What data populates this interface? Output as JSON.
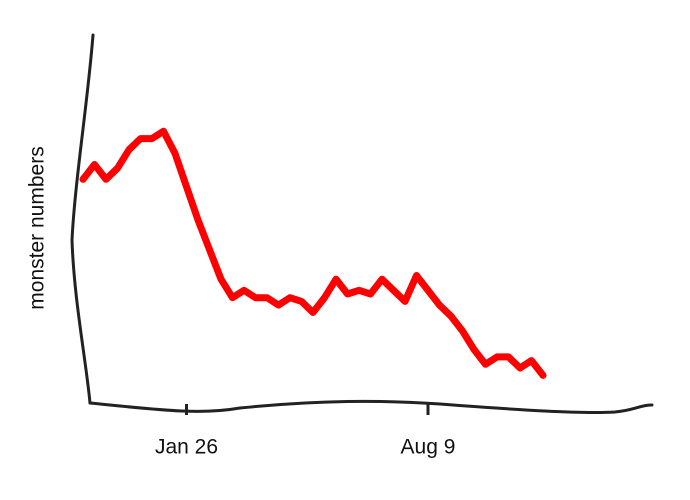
{
  "chart_data": {
    "type": "line",
    "ylabel": "monster numbers",
    "categories": [
      null,
      null,
      null,
      null,
      null,
      null,
      null,
      null,
      null,
      "Jan 26",
      null,
      null,
      null,
      null,
      null,
      null,
      null,
      null,
      null,
      null,
      null,
      null,
      null,
      null,
      null,
      null,
      null,
      null,
      null,
      null,
      "Aug 9",
      null,
      null,
      null,
      null,
      null,
      null,
      null,
      null,
      null,
      null
    ],
    "values": [
      61,
      65,
      61,
      64,
      69,
      72,
      72,
      74,
      68,
      59,
      50,
      42,
      34,
      29,
      31,
      29,
      29,
      27,
      29,
      28,
      25,
      29,
      34,
      30,
      31,
      30,
      34,
      31,
      28,
      35,
      31,
      27,
      24,
      20,
      15,
      11,
      13,
      13,
      10,
      12,
      8
    ],
    "color": "#ff0000",
    "ylim": [
      0,
      100
    ]
  }
}
